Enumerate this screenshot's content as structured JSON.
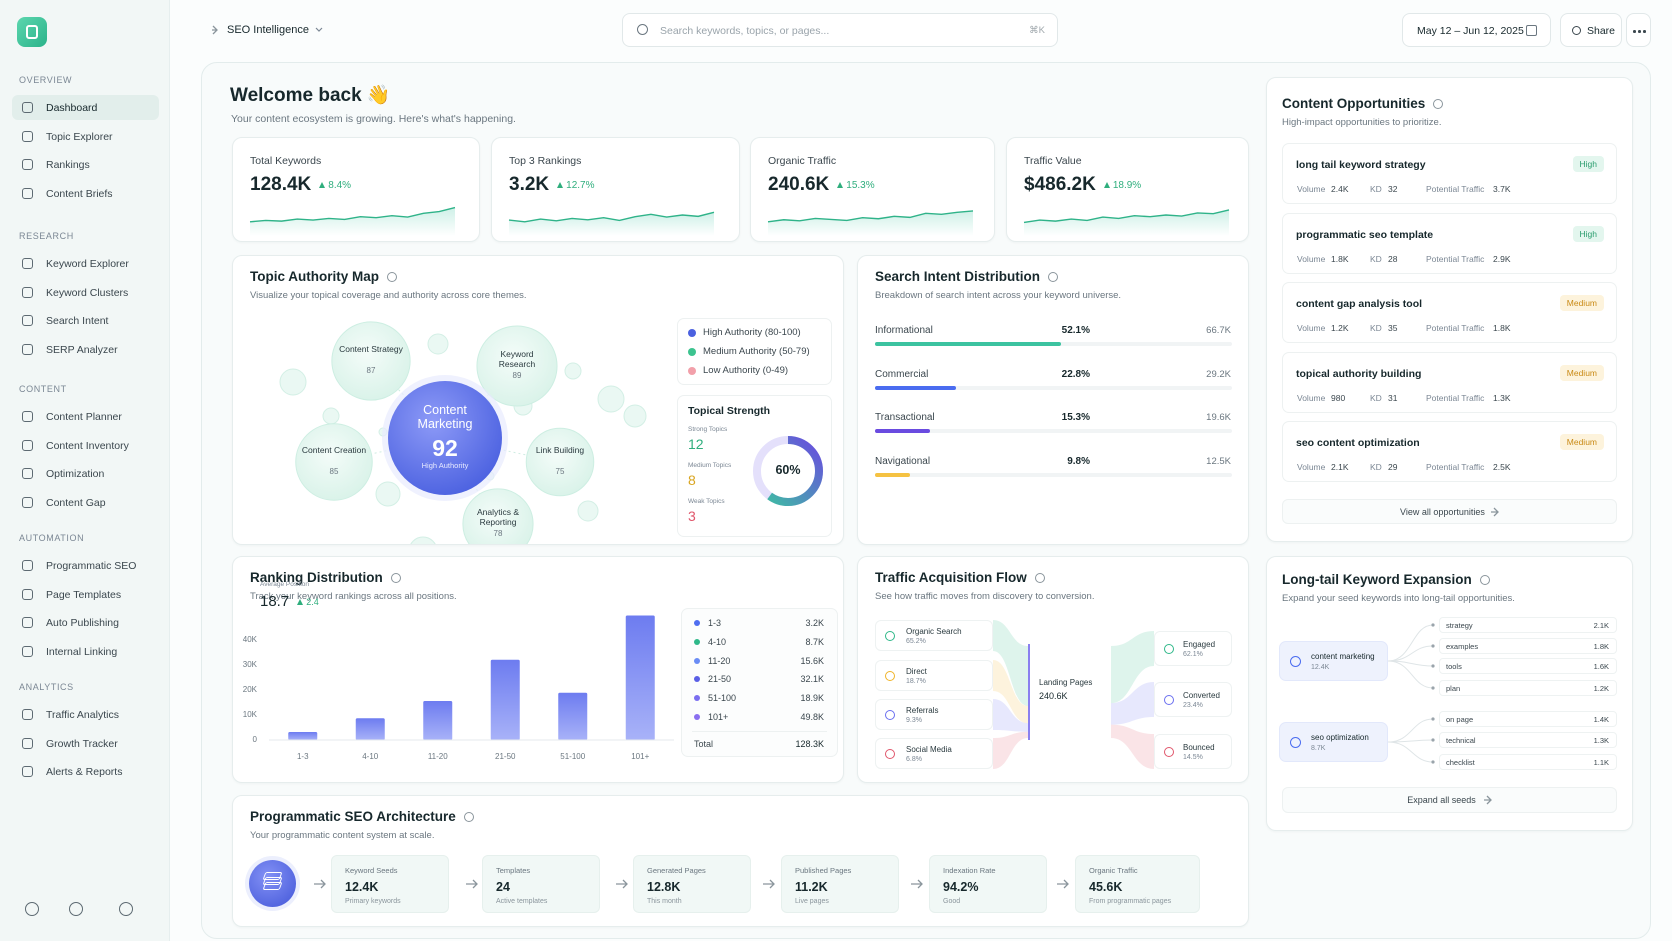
{
  "sidebar": {
    "sections": [
      {
        "title": "OVERVIEW",
        "items": [
          "Dashboard",
          "Topic Explorer",
          "Rankings",
          "Content Briefs"
        ]
      },
      {
        "title": "RESEARCH",
        "items": [
          "Keyword Explorer",
          "Keyword Clusters",
          "Search Intent",
          "SERP Analyzer"
        ]
      },
      {
        "title": "CONTENT",
        "items": [
          "Content Planner",
          "Content Inventory",
          "Optimization",
          "Content Gap"
        ]
      },
      {
        "title": "AUTOMATION",
        "items": [
          "Programmatic SEO",
          "Page Templates",
          "Auto Publishing",
          "Internal Linking"
        ]
      },
      {
        "title": "ANALYTICS",
        "items": [
          "Traffic Analytics",
          "Growth Tracker",
          "Alerts & Reports"
        ]
      }
    ]
  },
  "topbar": {
    "breadcrumb": "SEO Intelligence",
    "search_placeholder": "Search keywords, topics, or pages...",
    "shortcut": "⌘K",
    "date_range": "May 12 – Jun 12, 2025",
    "share": "Share"
  },
  "welcome": {
    "title": "Welcome back 👋",
    "subtitle": "Your content ecosystem is growing. Here's what's happening."
  },
  "kpis": [
    {
      "label": "Total Keywords",
      "value": "128.4K",
      "change": "8.4%",
      "sparkline": [
        30,
        34,
        32,
        38,
        35,
        40,
        37,
        45,
        42,
        48,
        44,
        55,
        60,
        72
      ]
    },
    {
      "label": "Top 3 Rankings",
      "value": "3.2K",
      "change": "12.7%",
      "sparkline": [
        35,
        30,
        38,
        33,
        40,
        36,
        42,
        34,
        45,
        52,
        44,
        50,
        46,
        58
      ]
    },
    {
      "label": "Organic Traffic",
      "value": "240.6K",
      "change": "15.3%",
      "sparkline": [
        30,
        36,
        33,
        40,
        37,
        34,
        42,
        39,
        46,
        43,
        55,
        52,
        58,
        62
      ]
    },
    {
      "label": "Traffic Value",
      "value": "$486.2K",
      "change": "18.9%",
      "sparkline": [
        28,
        35,
        32,
        38,
        34,
        44,
        40,
        48,
        45,
        50,
        47,
        56,
        54,
        65
      ]
    }
  ],
  "topic_authority": {
    "title": "Topic Authority Map",
    "subtitle": "Visualize your topical coverage and authority across core themes.",
    "main": {
      "name": "Content Marketing",
      "score": 92,
      "note": "High Authority"
    },
    "bubbles": [
      {
        "name": "Content Strategy",
        "score": 87
      },
      {
        "name": "Keyword Research",
        "score": 89
      },
      {
        "name": "Content Creation",
        "score": 85
      },
      {
        "name": "Link Building",
        "score": 75
      },
      {
        "name": "Analytics & Reporting",
        "score": 78
      }
    ],
    "legend": [
      {
        "label": "High Authority (80-100)",
        "color": "#4b61e0"
      },
      {
        "label": "Medium Authority (50-79)",
        "color": "#3cc38f"
      },
      {
        "label": "Low Authority (0-49)",
        "color": "#f2a0aa"
      }
    ],
    "topical_strength": {
      "title": "Topical Strength",
      "items": [
        {
          "label": "Strong Topics",
          "value": 12,
          "color": "#2fae7d"
        },
        {
          "label": "Medium Topics",
          "value": 8,
          "color": "#d9a520"
        },
        {
          "label": "Weak Topics",
          "value": 3,
          "color": "#e0566b"
        }
      ],
      "donut": {
        "value": 60,
        "label": "60%"
      }
    }
  },
  "search_intent": {
    "title": "Search Intent Distribution",
    "subtitle": "Breakdown of search intent across your keyword universe.",
    "rows": [
      {
        "name": "Informational",
        "value": 52.1,
        "value_label": "52.1%",
        "count": "66.7K",
        "color": "#3cc3a0"
      },
      {
        "name": "Commercial",
        "value": 22.8,
        "value_label": "22.8%",
        "count": "29.2K",
        "color": "#4a6cf0"
      },
      {
        "name": "Transactional",
        "value": 15.3,
        "value_label": "15.3%",
        "count": "19.6K",
        "color": "#6a4be0"
      },
      {
        "name": "Navigational",
        "value": 9.8,
        "value_label": "9.8%",
        "count": "12.5K",
        "color": "#f5c242"
      }
    ]
  },
  "content_opportunities": {
    "title": "Content Opportunities",
    "subtitle": "High-impact opportunities to prioritize.",
    "labels": {
      "volume": "Volume",
      "kd": "KD",
      "traffic": "Potential Traffic"
    },
    "items": [
      {
        "keyword": "long tail keyword strategy",
        "priority": "High",
        "volume": "2.4K",
        "kd": 32,
        "traffic": "3.7K"
      },
      {
        "keyword": "programmatic seo template",
        "priority": "High",
        "volume": "1.8K",
        "kd": 28,
        "traffic": "2.9K"
      },
      {
        "keyword": "content gap analysis tool",
        "priority": "Medium",
        "volume": "1.2K",
        "kd": 35,
        "traffic": "1.8K"
      },
      {
        "keyword": "topical authority building",
        "priority": "Medium",
        "volume": "980",
        "kd": 31,
        "traffic": "1.3K"
      },
      {
        "keyword": "seo content optimization",
        "priority": "Medium",
        "volume": "2.1K",
        "kd": 29,
        "traffic": "2.5K"
      }
    ],
    "button": "View all opportunities"
  },
  "chart_data": {
    "type": "bar",
    "title": "Ranking Distribution",
    "subtitle": "Track your keyword rankings across all positions.",
    "categories": [
      "1-3",
      "4-10",
      "11-20",
      "21-50",
      "51-100",
      "101+"
    ],
    "values": [
      3200,
      8700,
      15600,
      32100,
      18900,
      49800
    ],
    "value_labels": [
      "3.2K",
      "8.7K",
      "15.6K",
      "32.1K",
      "18.9K",
      "49.8K"
    ],
    "legend_colors": [
      "#4f6ef0",
      "#2fb889",
      "#6a8cf5",
      "#5a5fe6",
      "#7b6ef0",
      "#8a6ff0"
    ],
    "color": "#6d7cf0",
    "ylim": [
      0,
      50000
    ],
    "yticks": [
      0,
      {
        "value": 10000,
        "label": "10K"
      },
      {
        "value": 20000,
        "label": "20K"
      },
      {
        "value": 30000,
        "label": "30K"
      },
      {
        "value": 40000,
        "label": "40K"
      }
    ],
    "average": {
      "label": "Average Position",
      "value": "18.7",
      "change": "2.4"
    },
    "total": {
      "label": "Total",
      "value": "128.3K"
    }
  },
  "traffic_flow": {
    "title": "Traffic Acquisition Flow",
    "subtitle": "See how traffic moves from discovery to conversion.",
    "sources": [
      {
        "name": "Organic Search",
        "value": 65.2,
        "value_label": "65.2%",
        "color": "#2fb889"
      },
      {
        "name": "Direct",
        "value": 18.7,
        "value_label": "18.7%",
        "color": "#f0b429"
      },
      {
        "name": "Referrals",
        "value": 9.3,
        "value_label": "9.3%",
        "color": "#6a6ff0"
      },
      {
        "name": "Social Media",
        "value": 6.8,
        "value_label": "6.8%",
        "color": "#e0566b"
      }
    ],
    "center": {
      "label": "Landing Pages",
      "value": "240.6K"
    },
    "outcomes": [
      {
        "name": "Engaged",
        "value": 62.1,
        "value_label": "62.1%",
        "color": "#2fb889"
      },
      {
        "name": "Converted",
        "value": 23.4,
        "value_label": "23.4%",
        "color": "#6a6ff0"
      },
      {
        "name": "Bounced",
        "value": 14.5,
        "value_label": "14.5%",
        "color": "#e0566b"
      }
    ]
  },
  "longtail": {
    "title": "Long-tail Keyword Expansion",
    "subtitle": "Expand your seed keywords into long-tail opportunities.",
    "seeds": [
      {
        "name": "content marketing",
        "volume": "12.4K",
        "children": [
          {
            "name": "strategy",
            "volume": "2.1K"
          },
          {
            "name": "examples",
            "volume": "1.8K"
          },
          {
            "name": "tools",
            "volume": "1.6K"
          },
          {
            "name": "plan",
            "volume": "1.2K"
          }
        ]
      },
      {
        "name": "seo optimization",
        "volume": "8.7K",
        "children": [
          {
            "name": "on page",
            "volume": "1.4K"
          },
          {
            "name": "technical",
            "volume": "1.3K"
          },
          {
            "name": "checklist",
            "volume": "1.1K"
          }
        ]
      }
    ],
    "button": "Expand all seeds"
  },
  "programmatic": {
    "title": "Programmatic SEO Architecture",
    "subtitle": "Your programmatic content system at scale.",
    "steps": [
      {
        "label": "Keyword Seeds",
        "value": "12.4K",
        "note": "Primary keywords"
      },
      {
        "label": "Templates",
        "value": "24",
        "note": "Active templates"
      },
      {
        "label": "Generated Pages",
        "value": "12.8K",
        "note": "This month"
      },
      {
        "label": "Published Pages",
        "value": "11.2K",
        "note": "Live pages"
      },
      {
        "label": "Indexation Rate",
        "value": "94.2%",
        "note": "Good"
      },
      {
        "label": "Organic Traffic",
        "value": "45.6K",
        "note": "From programmatic pages"
      }
    ]
  }
}
